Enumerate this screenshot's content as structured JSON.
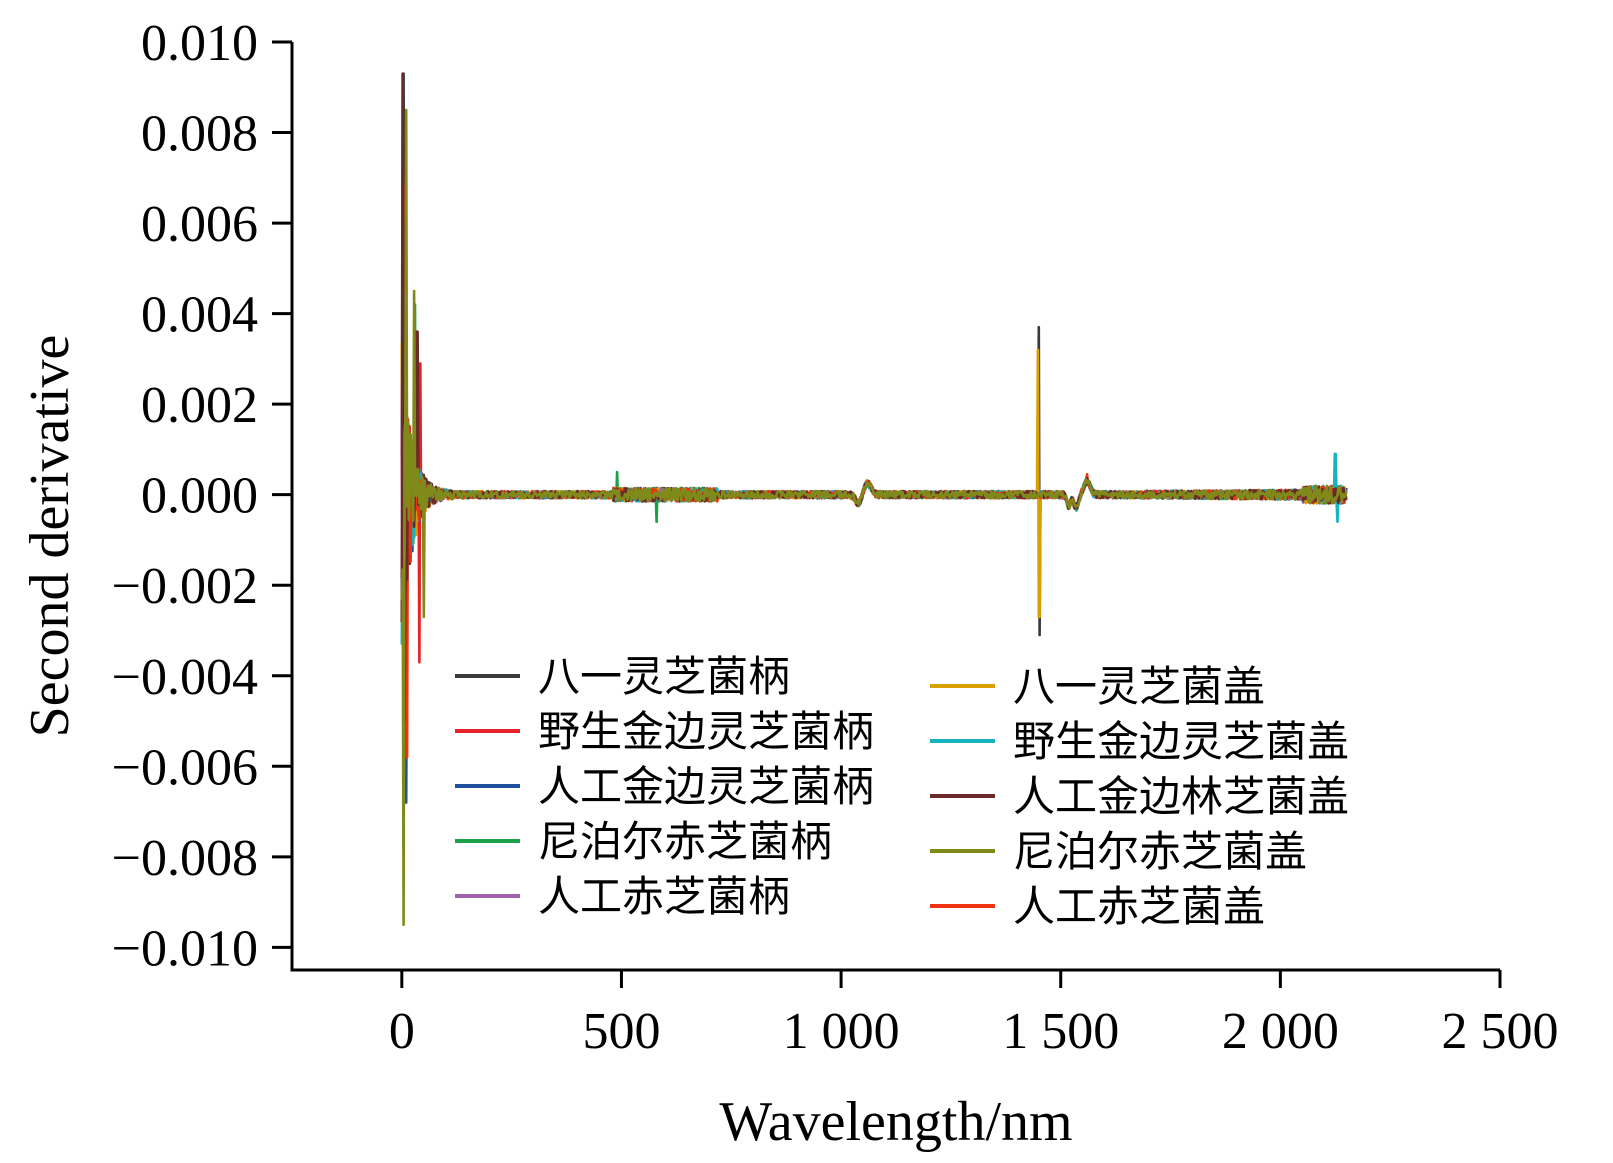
{
  "chart_data": {
    "type": "line",
    "title": "",
    "xlabel": "Wavelength/nm",
    "ylabel": "Second derivative",
    "xlim": [
      -250,
      2500
    ],
    "ylim": [
      -0.0105,
      0.01
    ],
    "x_ticks": [
      0,
      500,
      1000,
      1500,
      2000,
      2500
    ],
    "x_tick_labels": [
      "0",
      "500",
      "1 000",
      "1 500",
      "2 000",
      "2 500"
    ],
    "y_ticks": [
      0.01,
      0.008,
      0.006,
      0.004,
      0.002,
      0.0,
      -0.002,
      -0.004,
      -0.006,
      -0.008,
      -0.01
    ],
    "y_tick_labels": [
      "0.010",
      "0.008",
      "0.006",
      "0.004",
      "0.002",
      "0.000",
      "−0.002",
      "−0.004",
      "−0.006",
      "−0.008",
      "−0.010"
    ],
    "grid": false,
    "legend_position": "lower-center, two columns",
    "x_range": [
      0,
      2150
    ],
    "series": [
      {
        "name": "八一灵芝菌柄",
        "color": "#3a3a3a",
        "peaks": [
          [
            3,
            0.0093
          ],
          [
            8,
            -0.0051
          ],
          [
            1450,
            0.0037
          ],
          [
            1452,
            -0.0031
          ]
        ]
      },
      {
        "name": "野生金边灵芝菌柄",
        "color": "#e8212b",
        "peaks": [
          [
            5,
            0.0068
          ],
          [
            40,
            -0.0037
          ],
          [
            42,
            0.0029
          ]
        ]
      },
      {
        "name": "人工金边灵芝菌柄",
        "color": "#1f4e9c",
        "peaks": [
          [
            6,
            0.0061
          ],
          [
            10,
            -0.0068
          ]
        ]
      },
      {
        "name": "尼泊尔赤芝菌柄",
        "color": "#1aa14a",
        "peaks": [
          [
            4,
            -0.0078
          ],
          [
            30,
            0.0042
          ],
          [
            490,
            0.0005
          ],
          [
            580,
            -0.0006
          ]
        ]
      },
      {
        "name": "人工赤芝菌柄",
        "color": "#a25fb0",
        "peaks": [
          [
            7,
            0.0035
          ],
          [
            9,
            -0.0042
          ]
        ]
      },
      {
        "name": "八一灵芝菌盖",
        "color": "#d8a000",
        "peaks": [
          [
            1449,
            0.0032
          ],
          [
            1451,
            -0.0027
          ],
          [
            1060,
            0.0003
          ]
        ]
      },
      {
        "name": "野生金边灵芝菌盖",
        "color": "#17b3c1",
        "peaks": [
          [
            2125,
            0.0009
          ],
          [
            2130,
            -0.0006
          ],
          [
            8,
            0.0034
          ]
        ]
      },
      {
        "name": "人工金边林芝菌盖",
        "color": "#6b2a2a",
        "peaks": [
          [
            2,
            0.0093
          ],
          [
            35,
            0.0036
          ],
          [
            6,
            -0.005
          ]
        ]
      },
      {
        "name": "尼泊尔赤芝菌盖",
        "color": "#7f8a1b",
        "peaks": [
          [
            10,
            0.0085
          ],
          [
            4,
            -0.0095
          ],
          [
            28,
            0.0045
          ],
          [
            50,
            -0.0027
          ]
        ]
      },
      {
        "name": "人工赤芝菌盖",
        "color": "#ee3310",
        "peaks": [
          [
            6,
            0.0065
          ],
          [
            12,
            -0.0058
          ],
          [
            1560,
            0.00045
          ]
        ]
      }
    ]
  }
}
